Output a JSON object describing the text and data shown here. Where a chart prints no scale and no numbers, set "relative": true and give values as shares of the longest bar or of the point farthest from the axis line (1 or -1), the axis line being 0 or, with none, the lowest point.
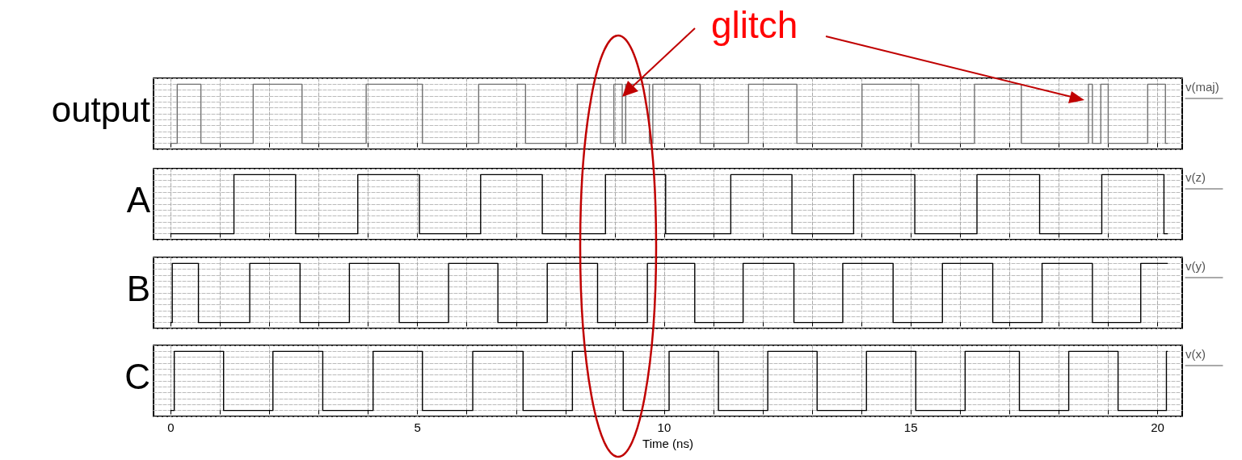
{
  "chart_data": [
    {
      "type": "step",
      "ylabel": "output",
      "relative": true,
      "xlim": [
        -0.35,
        20.5
      ],
      "xticks": [
        {
          "value": 0,
          "label": null
        },
        {
          "value": 1,
          "label": null
        },
        {
          "value": 2,
          "label": null
        },
        {
          "value": 3,
          "label": null
        },
        {
          "value": 4,
          "label": null
        },
        {
          "value": 5,
          "label": null
        },
        {
          "value": 6,
          "label": null
        },
        {
          "value": 7,
          "label": null
        },
        {
          "value": 8,
          "label": null
        },
        {
          "value": 9,
          "label": null
        },
        {
          "value": 10,
          "label": null
        },
        {
          "value": 11,
          "label": null
        },
        {
          "value": 12,
          "label": null
        },
        {
          "value": 13,
          "label": null
        },
        {
          "value": 14,
          "label": null
        },
        {
          "value": 15,
          "label": null
        },
        {
          "value": 16,
          "label": null
        },
        {
          "value": 17,
          "label": null
        },
        {
          "value": 18,
          "label": null
        },
        {
          "value": 19,
          "label": null
        },
        {
          "value": 20,
          "label": null
        }
      ],
      "tick_labels": false,
      "grid": true,
      "annotations": [
        "glitch"
      ],
      "series": [
        {
          "name": "v(maj)",
          "color": "#707070",
          "x": [
            0,
            0.13,
            0.61,
            1.67,
            2.66,
            3.96,
            5.1,
            6.24,
            7.19,
            8.24,
            8.71,
            8.98,
            9.15,
            9.22,
            9.7,
            9.77,
            10.73,
            11.71,
            12.69,
            14.01,
            15.16,
            16.29,
            17.24,
            18.6,
            18.68,
            18.85,
            19.0,
            19.8,
            20.16,
            20.2
          ],
          "values": [
            0,
            1,
            0,
            1,
            0,
            1,
            0,
            1,
            0,
            1,
            0,
            1,
            0,
            1,
            0,
            1,
            0,
            1,
            0,
            1,
            0,
            1,
            0,
            1,
            0,
            1,
            0,
            1,
            0,
            0
          ]
        }
      ]
    },
    {
      "type": "step",
      "ylabel": "A",
      "relative": true,
      "xlim": [
        -0.35,
        20.5
      ],
      "xticks": [
        {
          "value": 0,
          "label": null
        },
        {
          "value": 1,
          "label": null
        },
        {
          "value": 2,
          "label": null
        },
        {
          "value": 3,
          "label": null
        },
        {
          "value": 4,
          "label": null
        },
        {
          "value": 5,
          "label": null
        },
        {
          "value": 6,
          "label": null
        },
        {
          "value": 7,
          "label": null
        },
        {
          "value": 8,
          "label": null
        },
        {
          "value": 9,
          "label": null
        },
        {
          "value": 10,
          "label": null
        },
        {
          "value": 11,
          "label": null
        },
        {
          "value": 12,
          "label": null
        },
        {
          "value": 13,
          "label": null
        },
        {
          "value": 14,
          "label": null
        },
        {
          "value": 15,
          "label": null
        },
        {
          "value": 16,
          "label": null
        },
        {
          "value": 17,
          "label": null
        },
        {
          "value": 18,
          "label": null
        },
        {
          "value": 19,
          "label": null
        },
        {
          "value": 20,
          "label": null
        }
      ],
      "tick_labels": false,
      "grid": true,
      "series": [
        {
          "name": "v(z)",
          "color": "#000000",
          "x": [
            0,
            1.28,
            2.53,
            3.79,
            5.04,
            6.28,
            7.53,
            8.81,
            10.03,
            11.35,
            12.59,
            13.84,
            15.08,
            16.34,
            17.61,
            18.87,
            20.13,
            20.2
          ],
          "values": [
            0,
            1,
            0,
            1,
            0,
            1,
            0,
            1,
            0,
            1,
            0,
            1,
            0,
            1,
            0,
            1,
            0,
            0
          ]
        }
      ]
    },
    {
      "type": "step",
      "ylabel": "B",
      "relative": true,
      "xlim": [
        -0.35,
        20.5
      ],
      "xticks": [
        {
          "value": 0,
          "label": null
        },
        {
          "value": 1,
          "label": null
        },
        {
          "value": 2,
          "label": null
        },
        {
          "value": 3,
          "label": null
        },
        {
          "value": 4,
          "label": null
        },
        {
          "value": 5,
          "label": null
        },
        {
          "value": 6,
          "label": null
        },
        {
          "value": 7,
          "label": null
        },
        {
          "value": 8,
          "label": null
        },
        {
          "value": 9,
          "label": null
        },
        {
          "value": 10,
          "label": null
        },
        {
          "value": 11,
          "label": null
        },
        {
          "value": 12,
          "label": null
        },
        {
          "value": 13,
          "label": null
        },
        {
          "value": 14,
          "label": null
        },
        {
          "value": 15,
          "label": null
        },
        {
          "value": 16,
          "label": null
        },
        {
          "value": 17,
          "label": null
        },
        {
          "value": 18,
          "label": null
        },
        {
          "value": 19,
          "label": null
        },
        {
          "value": 20,
          "label": null
        }
      ],
      "tick_labels": false,
      "grid": true,
      "series": [
        {
          "name": "v(y)",
          "color": "#000000",
          "x": [
            0,
            0.03,
            0.56,
            1.6,
            2.62,
            3.62,
            4.63,
            5.63,
            6.63,
            7.63,
            8.65,
            9.66,
            10.62,
            11.6,
            12.63,
            13.62,
            14.64,
            15.64,
            16.66,
            17.66,
            18.68,
            19.66,
            20.2
          ],
          "values": [
            0,
            1,
            0,
            1,
            0,
            1,
            0,
            1,
            0,
            1,
            0,
            1,
            0,
            1,
            0,
            1,
            0,
            1,
            0,
            1,
            0,
            1,
            1
          ]
        }
      ]
    },
    {
      "type": "step",
      "ylabel": "C",
      "xlabel": "Time (ns)",
      "relative": true,
      "xlim": [
        -0.35,
        20.5
      ],
      "xticks": [
        0,
        {
          "value": 1,
          "label": null
        },
        {
          "value": 2,
          "label": null
        },
        {
          "value": 3,
          "label": null
        },
        {
          "value": 4,
          "label": null
        },
        5,
        {
          "value": 6,
          "label": null
        },
        {
          "value": 7,
          "label": null
        },
        {
          "value": 8,
          "label": null
        },
        {
          "value": 9,
          "label": null
        },
        10,
        {
          "value": 11,
          "label": null
        },
        {
          "value": 12,
          "label": null
        },
        {
          "value": 13,
          "label": null
        },
        {
          "value": 14,
          "label": null
        },
        15,
        {
          "value": 16,
          "label": null
        },
        {
          "value": 17,
          "label": null
        },
        {
          "value": 18,
          "label": null
        },
        {
          "value": 19,
          "label": null
        },
        20
      ],
      "tick_labels": "x",
      "grid": true,
      "series": [
        {
          "name": "v(x)",
          "color": "#000000",
          "x": [
            0,
            0.07,
            1.07,
            2.07,
            3.08,
            4.1,
            5.1,
            6.12,
            7.14,
            8.14,
            9.17,
            10.1,
            11.1,
            12.1,
            13.1,
            14.1,
            15.1,
            16.1,
            17.2,
            18.2,
            19.2,
            20.18,
            20.2
          ],
          "values": [
            0,
            1,
            0,
            1,
            0,
            1,
            0,
            1,
            0,
            1,
            0,
            1,
            0,
            1,
            0,
            1,
            0,
            1,
            0,
            1,
            0,
            1,
            1
          ]
        }
      ]
    }
  ]
}
